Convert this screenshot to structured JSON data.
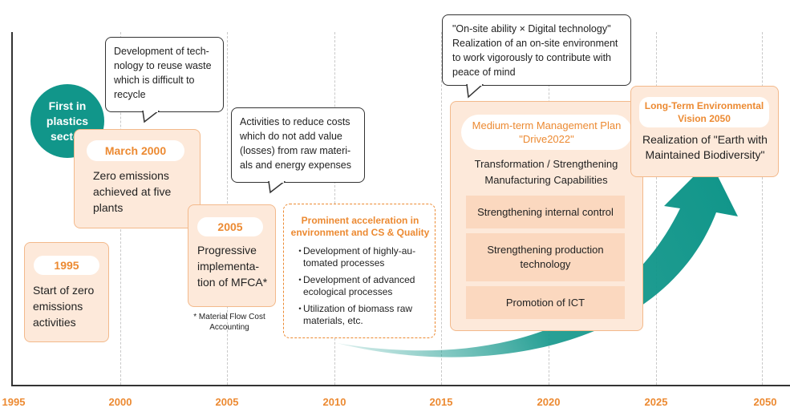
{
  "axis": {
    "years": [
      "1995",
      "2000",
      "2005",
      "2010",
      "2015",
      "2020",
      "2025",
      "2050"
    ]
  },
  "badge": {
    "lines": [
      "First in",
      "plastics",
      "sector"
    ]
  },
  "m1995": {
    "year": "1995",
    "text": "Start of zero emissions activities"
  },
  "m2000": {
    "year": "March 2000",
    "text": "Zero emissions achieved at five plants"
  },
  "m2005": {
    "year": "2005",
    "text": "Progressive implementa-tion of MFCA*"
  },
  "footnote": "* Material Flow Cost Accounting",
  "bubble_reuse": "Development of tech-nology to reuse waste which is difficult to recycle",
  "bubble_costs": "Activities to reduce costs which do not add value (losses) from raw materi-als and energy expenses",
  "bubble_onsite": {
    "line1": "\"On-site ability × Digital technology\"",
    "line2": "Realization of an on-site environment to work vigorously to contribute with peace of mind"
  },
  "accel": {
    "title": "Prominent acceleration in environment and CS & Quality",
    "items": [
      "Development of highly-au-tomated processes",
      "Development of advanced ecological processes",
      "Utilization of biomass raw materials, etc."
    ]
  },
  "plan": {
    "title": "Medium-term Management Plan \"Drive2022\"",
    "subtitle": "Transformation / Strengthening Manufacturing Capabilities",
    "items": [
      "Strengthening internal control",
      "Strengthening production technology",
      "Promotion of ICT"
    ]
  },
  "vision": {
    "title": "Long-Term Environmental Vision 2050",
    "text": "Realization of \"Earth with Maintained Biodiversity\""
  },
  "colors": {
    "accent": "#ec8a32",
    "teal": "#11968a",
    "box_fill": "#fde9da",
    "box_border": "#f3b98b"
  }
}
